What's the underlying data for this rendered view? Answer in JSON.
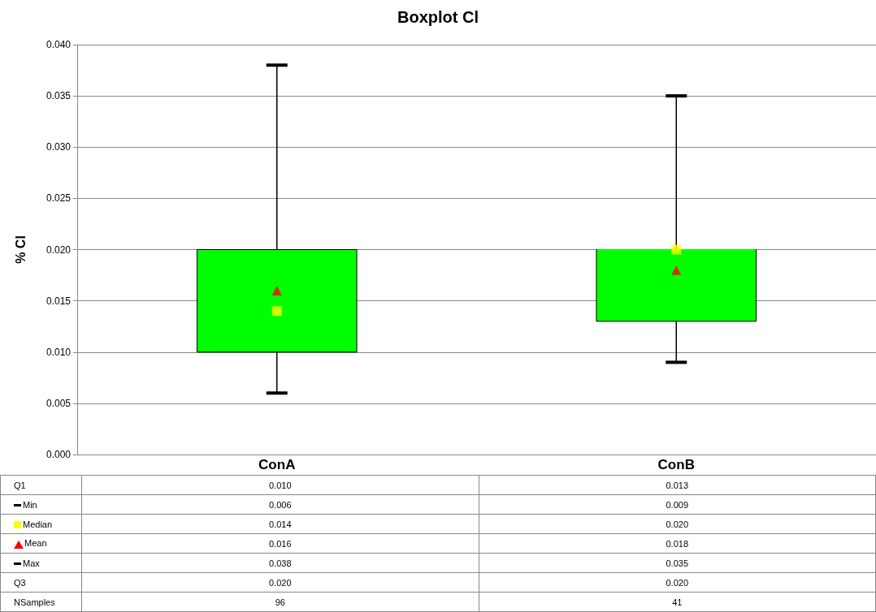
{
  "chart_data": {
    "type": "box",
    "title": "Boxplot Cl",
    "ylabel": "% Cl",
    "categories": [
      "ConA",
      "ConB"
    ],
    "series": [
      {
        "color": "#00ff00",
        "boxes": [
          {
            "low": 0.006,
            "q1": 0.01,
            "median": 0.014,
            "q3": 0.02,
            "high": 0.038
          },
          {
            "low": 0.009,
            "q1": 0.013,
            "median": 0.02,
            "q3": 0.02,
            "high": 0.035
          }
        ]
      },
      {
        "type": "scatter",
        "name": "Median",
        "color": "#ffff00",
        "marker": "square",
        "x": [
          "ConA",
          "ConB"
        ],
        "values": [
          0.014,
          0.02
        ],
        "value_labels": [
          "0.014",
          "0.020"
        ]
      },
      {
        "type": "scatter",
        "name": "Mean",
        "color": "#ff0000",
        "marker": "triangle",
        "x": [
          "ConA",
          "ConB"
        ],
        "values": [
          0.016,
          0.018
        ],
        "value_labels": [
          "0.016",
          "0.018"
        ]
      }
    ],
    "ylim": [
      0,
      0.04
    ],
    "yticks": [
      {
        "value": 0,
        "label": "0.000"
      },
      {
        "value": 0.005,
        "label": "0.005"
      },
      {
        "value": 0.01,
        "label": "0.010"
      },
      {
        "value": 0.015,
        "label": "0.015"
      },
      {
        "value": 0.02,
        "label": "0.020"
      },
      {
        "value": 0.025,
        "label": "0.025"
      },
      {
        "value": 0.03,
        "label": "0.030"
      },
      {
        "value": 0.035,
        "label": "0.035"
      },
      {
        "value": 0.04,
        "label": "0.040"
      }
    ],
    "grid": "y",
    "legend": "bottom left",
    "annotations": [
      "Q1",
      "0.010",
      "0.013",
      "Min",
      "0.006",
      "0.009",
      "Max",
      "0.038",
      "0.035",
      "Q3",
      "0.020",
      "0.020",
      "NSamples",
      "96",
      "41"
    ]
  }
}
